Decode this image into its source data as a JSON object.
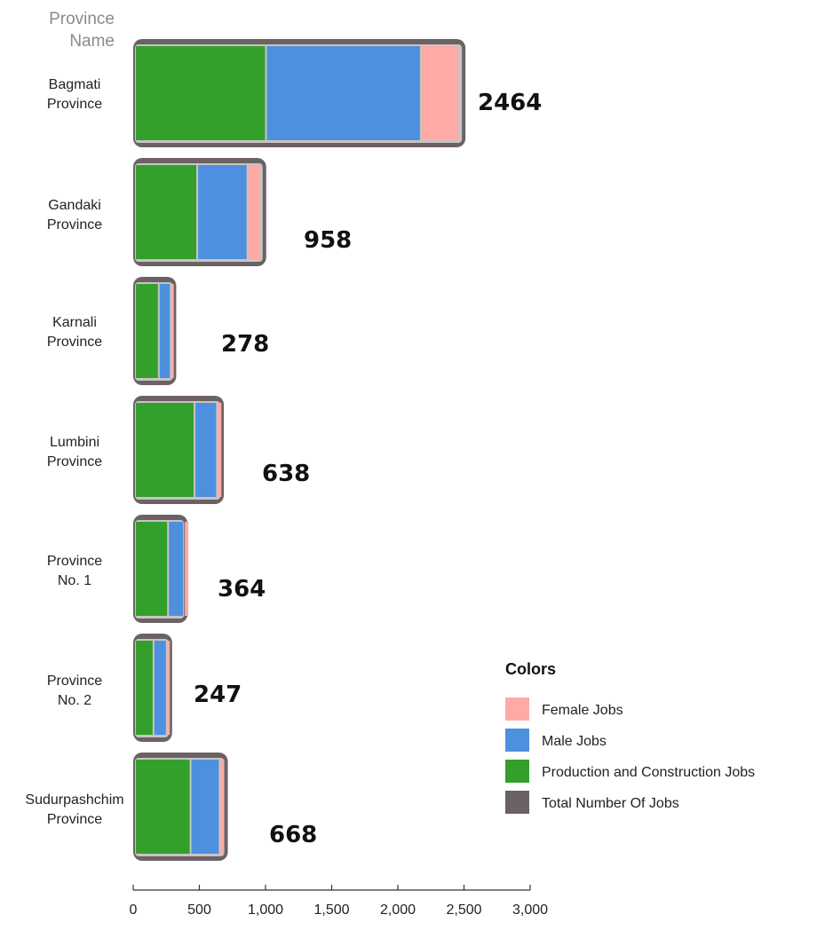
{
  "chart_data": {
    "type": "bar",
    "orientation": "horizontal",
    "y_axis_title": [
      "Province",
      "Name"
    ],
    "categories": [
      [
        "Bagmati",
        "Province"
      ],
      [
        "Gandaki",
        "Province"
      ],
      [
        "Karnali",
        "Province"
      ],
      [
        "Lumbini",
        "Province"
      ],
      [
        "Province",
        "No. 1"
      ],
      [
        "Province",
        "No. 2"
      ],
      [
        "Sudurpashchim",
        "Province"
      ]
    ],
    "series": [
      {
        "name": "Total Number Of Jobs",
        "color": "#6b6264",
        "values": [
          2464,
          958,
          278,
          638,
          364,
          247,
          668
        ]
      },
      {
        "name": "Production and Construction Jobs",
        "color": "#33a02c",
        "values": [
          990,
          470,
          180,
          450,
          250,
          140,
          420
        ]
      },
      {
        "name": "Male Jobs",
        "color": "#4d90dd",
        "values": [
          1170,
          380,
          90,
          170,
          120,
          100,
          220
        ]
      },
      {
        "name": "Female Jobs",
        "color": "#ffaaa5",
        "values": [
          290,
          100,
          30,
          40,
          40,
          30,
          40
        ]
      }
    ],
    "total_labels": [
      "2464",
      "958",
      "278",
      "638",
      "364",
      "247",
      "668"
    ],
    "xlim": [
      0,
      3000
    ],
    "x_ticks": [
      "0",
      "500",
      "1,000",
      "1,500",
      "2,000",
      "2,500",
      "3,000"
    ],
    "grid": false,
    "legend": {
      "title": "Colors",
      "position": "right",
      "items": [
        {
          "label": "Female Jobs",
          "color": "#ffaaa5"
        },
        {
          "label": "Male Jobs",
          "color": "#4d90dd"
        },
        {
          "label": "Production and Construction Jobs",
          "color": "#33a02c"
        },
        {
          "label": "Total Number Of Jobs",
          "color": "#6b6264"
        }
      ]
    }
  }
}
